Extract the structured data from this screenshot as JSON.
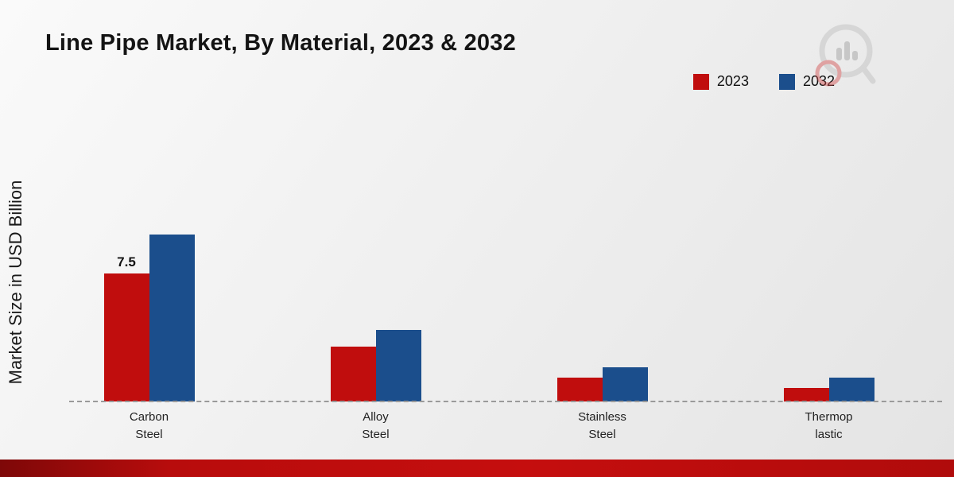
{
  "title": "Line Pipe Market, By Material, 2023 & 2032",
  "ylabel": "Market Size in USD Billion",
  "colors": {
    "series_2023": "#c00d0d",
    "series_2032": "#1b4e8c",
    "footer": "#b80c0c",
    "baseline": "#9a9a9a"
  },
  "legend": [
    {
      "label": "2023",
      "color": "#c00d0d"
    },
    {
      "label": "2032",
      "color": "#1b4e8c"
    }
  ],
  "chart_data": {
    "type": "bar",
    "title": "Line Pipe Market, By Material, 2023 & 2032",
    "xlabel": "",
    "ylabel": "Market Size in USD Billion",
    "categories": [
      "Carbon Steel",
      "Alloy Steel",
      "Stainless Steel",
      "Thermoplastic"
    ],
    "category_lines": [
      [
        "Carbon",
        "Steel"
      ],
      [
        "Alloy",
        "Steel"
      ],
      [
        "Stainless",
        "Steel"
      ],
      [
        "Thermop",
        "lastic"
      ]
    ],
    "series": [
      {
        "name": "2023",
        "color": "#c00d0d",
        "values": [
          7.5,
          3.2,
          1.4,
          0.8
        ]
      },
      {
        "name": "2032",
        "color": "#1b4e8c",
        "values": [
          9.8,
          4.2,
          2.0,
          1.4
        ]
      }
    ],
    "data_labels": [
      {
        "series": 0,
        "index": 0,
        "text": "7.5"
      }
    ],
    "ylim": [
      0,
      17
    ],
    "grid": false,
    "axis_line": "dashed",
    "legend_position": "top-right"
  }
}
